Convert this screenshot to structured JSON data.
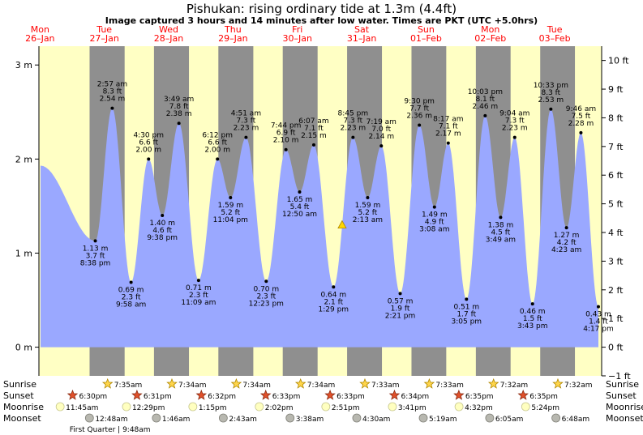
{
  "title": "Pishukan: rising  ordinary tide at 1.3m (4.4ft)",
  "subtitle": "Image captured 3 hours and 14 minutes after low water. Times are PKT (UTC +5.0hrs)",
  "colors": {
    "tide_fill": "#9aa8ff",
    "day_band": "#ffffc4",
    "night_band": "#8f8f8f",
    "day_header": "#ff0000",
    "current_marker": "#ffd700"
  },
  "chart_data": {
    "type": "area",
    "y_left": {
      "label": "m",
      "ticks": [
        "0 m",
        "1 m",
        "2 m",
        "3 m"
      ],
      "values": [
        0,
        1,
        2,
        3
      ],
      "ylim": [
        -0.305,
        3.2
      ]
    },
    "y_right": {
      "label": "ft",
      "ticks": [
        "−1 ft",
        "0 ft",
        "1 ft",
        "2 ft",
        "3 ft",
        "4 ft",
        "5 ft",
        "6 ft",
        "7 ft",
        "8 ft",
        "9 ft",
        "10 ft"
      ],
      "values": [
        -1,
        0,
        1,
        2,
        3,
        4,
        5,
        6,
        7,
        8,
        9,
        10
      ]
    },
    "day_headers": [
      {
        "day": "Mon",
        "date": "26–Jan",
        "t": 0
      },
      {
        "day": "Tue",
        "date": "27–Jan",
        "t": 24
      },
      {
        "day": "Wed",
        "date": "28–Jan",
        "t": 48
      },
      {
        "day": "Thu",
        "date": "29–Jan",
        "t": 72
      },
      {
        "day": "Fri",
        "date": "30–Jan",
        "t": 96
      },
      {
        "day": "Sat",
        "date": "31–Jan",
        "t": 120
      },
      {
        "day": "Sun",
        "date": "01–Feb",
        "t": 144
      },
      {
        "day": "Mon",
        "date": "02–Feb",
        "t": 168
      },
      {
        "day": "Tue",
        "date": "03–Feb",
        "t": 192
      }
    ],
    "series": [
      {
        "type": "tides",
        "values": [
          {
            "kind": "low",
            "t": 20.633,
            "m": 1.13,
            "ft": "3.7 ft",
            "time": "8:38 pm"
          },
          {
            "kind": "high",
            "t": 26.95,
            "m": 2.54,
            "ft": "8.3 ft",
            "time": "2:57 am"
          },
          {
            "kind": "low",
            "t": 33.967,
            "m": 0.69,
            "ft": "2.3 ft",
            "time": "9:58 am"
          },
          {
            "kind": "high",
            "t": 40.5,
            "m": 2.0,
            "ft": "6.6 ft",
            "time": "4:30 pm"
          },
          {
            "kind": "low",
            "t": 45.633,
            "m": 1.4,
            "ft": "4.6 ft",
            "time": "9:38 pm"
          },
          {
            "kind": "high",
            "t": 51.817,
            "m": 2.38,
            "ft": "7.8 ft",
            "time": "3:49 am"
          },
          {
            "kind": "low",
            "t": 59.15,
            "m": 0.71,
            "ft": "2.3 ft",
            "time": "11:09 am"
          },
          {
            "kind": "high",
            "t": 66.2,
            "m": 2.0,
            "ft": "6.6 ft",
            "time": "6:12 pm"
          },
          {
            "kind": "low",
            "t": 71.067,
            "m": 1.59,
            "ft": "5.2 ft",
            "time": "11:04 pm"
          },
          {
            "kind": "high",
            "t": 76.85,
            "m": 2.23,
            "ft": "7.3 ft",
            "time": "4:51 am"
          },
          {
            "kind": "low",
            "t": 84.383,
            "m": 0.7,
            "ft": "2.3 ft",
            "time": "12:23 pm"
          },
          {
            "kind": "high",
            "t": 91.733,
            "m": 2.1,
            "ft": "6.9 ft",
            "time": "7:44 pm"
          },
          {
            "kind": "low",
            "t": 96.833,
            "m": 1.65,
            "ft": "5.4 ft",
            "time": "12:50 am"
          },
          {
            "kind": "high",
            "t": 102.117,
            "m": 2.15,
            "ft": "7.1 ft",
            "time": "6:07 am"
          },
          {
            "kind": "low",
            "t": 109.483,
            "m": 0.64,
            "ft": "2.1 ft",
            "time": "1:29 pm"
          },
          {
            "kind": "high",
            "t": 116.75,
            "m": 2.23,
            "ft": "7.3 ft",
            "time": "8:45 pm"
          },
          {
            "kind": "low",
            "t": 122.217,
            "m": 1.59,
            "ft": "5.2 ft",
            "time": "2:13 am"
          },
          {
            "kind": "high",
            "t": 127.317,
            "m": 2.14,
            "ft": "7.0 ft",
            "time": "7:19 am"
          },
          {
            "kind": "low",
            "t": 134.35,
            "m": 0.57,
            "ft": "1.9 ft",
            "time": "2:21 pm"
          },
          {
            "kind": "high",
            "t": 141.5,
            "m": 2.36,
            "ft": "7.7 ft",
            "time": "9:30 pm"
          },
          {
            "kind": "low",
            "t": 147.133,
            "m": 1.49,
            "ft": "4.9 ft",
            "time": "3:08 am"
          },
          {
            "kind": "high",
            "t": 152.283,
            "m": 2.17,
            "ft": "7.1 ft",
            "time": "8:17 am"
          },
          {
            "kind": "low",
            "t": 159.083,
            "m": 0.51,
            "ft": "1.7 ft",
            "time": "3:05 pm"
          },
          {
            "kind": "high",
            "t": 166.05,
            "m": 2.46,
            "ft": "8.1 ft",
            "time": "10:03 pm"
          },
          {
            "kind": "low",
            "t": 171.817,
            "m": 1.38,
            "ft": "4.5 ft",
            "time": "3:49 am"
          },
          {
            "kind": "high",
            "t": 177.067,
            "m": 2.23,
            "ft": "7.3 ft",
            "time": "9:04 am"
          },
          {
            "kind": "low",
            "t": 183.717,
            "m": 0.46,
            "ft": "1.5 ft",
            "time": "3:43 pm"
          },
          {
            "kind": "high",
            "t": 190.55,
            "m": 2.53,
            "ft": "8.3 ft",
            "time": "10:33 pm"
          },
          {
            "kind": "low",
            "t": 196.383,
            "m": 1.27,
            "ft": "4.2 ft",
            "time": "4:23 am"
          },
          {
            "kind": "high",
            "t": 201.767,
            "m": 2.28,
            "ft": "7.5 ft",
            "time": "9:46 am"
          },
          {
            "kind": "low",
            "t": 208.283,
            "m": 0.43,
            "ft": "1.4 ft",
            "time": "4:17 pm"
          }
        ]
      }
    ],
    "current": {
      "t": 112.7,
      "m": 1.3
    },
    "x_range": [
      -0.4,
      209.5
    ],
    "sunrise": [
      "7:35am",
      "7:34am",
      "7:34am",
      "7:34am",
      "7:33am",
      "7:33am",
      "7:32am",
      "7:32am"
    ],
    "sunset": [
      "6:30pm",
      "6:31pm",
      "6:32pm",
      "6:33pm",
      "6:33pm",
      "6:34pm",
      "6:35pm",
      "6:35pm"
    ],
    "moonrise": [
      "11:45am",
      "12:29pm",
      "1:15pm",
      "2:02pm",
      "2:51pm",
      "3:41pm",
      "4:32pm",
      "5:24pm"
    ],
    "moonset": [
      "12:48am",
      "1:46am",
      "2:43am",
      "3:38am",
      "4:30am",
      "5:19am",
      "6:05am",
      "6:48am"
    ],
    "row_labels": {
      "sunrise": "Sunrise",
      "sunset": "Sunset",
      "moonrise": "Moonrise",
      "moonset": "Moonset"
    },
    "moon_phase_note": "First Quarter | 9:48am"
  }
}
